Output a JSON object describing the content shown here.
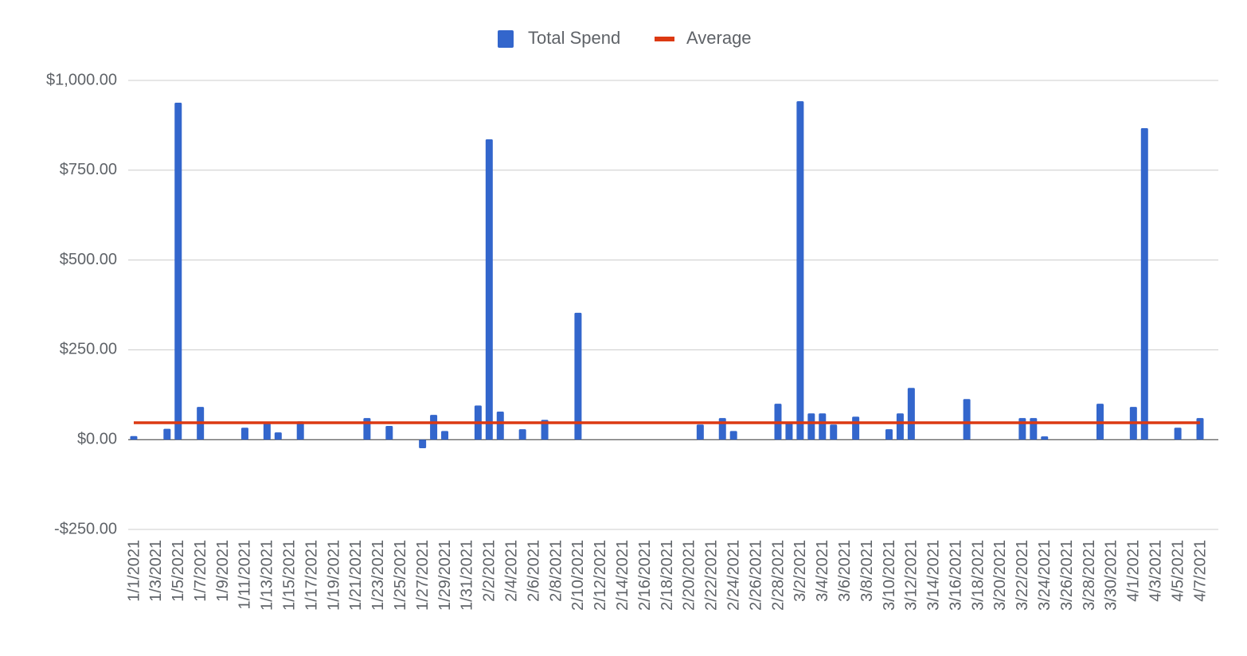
{
  "chart_data": {
    "type": "bar",
    "categories": [
      "1/1/2021",
      null,
      "1/3/2021",
      null,
      "1/5/2021",
      null,
      "1/7/2021",
      null,
      "1/9/2021",
      null,
      "1/11/2021",
      null,
      "1/13/2021",
      null,
      "1/15/2021",
      null,
      "1/17/2021",
      null,
      "1/19/2021",
      null,
      "1/21/2021",
      null,
      "1/23/2021",
      null,
      "1/25/2021",
      null,
      "1/27/2021",
      null,
      "1/29/2021",
      null,
      "1/31/2021",
      null,
      "2/2/2021",
      null,
      "2/4/2021",
      null,
      "2/6/2021",
      null,
      "2/8/2021",
      null,
      "2/10/2021",
      null,
      "2/12/2021",
      null,
      "2/14/2021",
      null,
      "2/16/2021",
      null,
      "2/18/2021",
      null,
      "2/20/2021",
      null,
      "2/22/2021",
      null,
      "2/24/2021",
      null,
      "2/26/2021",
      null,
      "2/28/2021",
      null,
      "3/2/2021",
      null,
      "3/4/2021",
      null,
      "3/6/2021",
      null,
      "3/8/2021",
      null,
      "3/10/2021",
      null,
      "3/12/2021",
      null,
      "3/14/2021",
      null,
      "3/16/2021",
      null,
      "3/18/2021",
      null,
      "3/20/2021",
      null,
      "3/22/2021",
      null,
      "3/24/2021",
      null,
      "3/26/2021",
      null,
      "3/28/2021",
      null,
      "3/30/2021",
      null,
      "4/1/2021",
      null,
      "4/3/2021",
      null,
      "4/5/2021",
      null,
      "4/7/2021"
    ],
    "series": [
      {
        "name": "Total Spend",
        "color": "#3366cc",
        "type": "bar",
        "values": [
          10,
          null,
          null,
          30,
          938,
          null,
          91,
          null,
          null,
          null,
          33,
          null,
          45,
          20,
          null,
          51,
          null,
          null,
          null,
          null,
          null,
          60,
          null,
          38,
          null,
          null,
          -24,
          69,
          24,
          null,
          null,
          95,
          836,
          78,
          null,
          29,
          null,
          55,
          null,
          null,
          353,
          null,
          null,
          null,
          null,
          null,
          null,
          null,
          null,
          null,
          null,
          42,
          null,
          60,
          24,
          null,
          null,
          null,
          100,
          47,
          942,
          73,
          73,
          42,
          null,
          64,
          null,
          null,
          29,
          73,
          144,
          null,
          null,
          null,
          null,
          113,
          null,
          null,
          null,
          null,
          60,
          60,
          9,
          null,
          null,
          null,
          null,
          100,
          null,
          null,
          91,
          867,
          null,
          null,
          33,
          null,
          60
        ]
      },
      {
        "name": "Average",
        "color": "#dc3912",
        "type": "line",
        "values": [
          47,
          47,
          47,
          47,
          47,
          47,
          47,
          47,
          47,
          47,
          47,
          47,
          47,
          47,
          47,
          47,
          47,
          47,
          47,
          47,
          47,
          47,
          47,
          47,
          47,
          47,
          47,
          47,
          47,
          47,
          47,
          47,
          47,
          47,
          47,
          47,
          47,
          47,
          47,
          47,
          47,
          47,
          47,
          47,
          47,
          47,
          47,
          47,
          47,
          47,
          47,
          47,
          47,
          47,
          47,
          47,
          47,
          47,
          47,
          47,
          47,
          47,
          47,
          47,
          47,
          47,
          47,
          47,
          47,
          47,
          47,
          47,
          47,
          47,
          47,
          47,
          47,
          47,
          47,
          47,
          47,
          47,
          47,
          47,
          47,
          47,
          47,
          47,
          47,
          47,
          47,
          47,
          47,
          47,
          47,
          47,
          47
        ]
      }
    ],
    "ylim": [
      -250,
      1000
    ],
    "yticks": [
      {
        "value": -250,
        "label": "-$250.00"
      },
      {
        "value": 0,
        "label": "$0.00"
      },
      {
        "value": 250,
        "label": "$250.00"
      },
      {
        "value": 500,
        "label": "$500.00"
      },
      {
        "value": 750,
        "label": "$750.00"
      },
      {
        "value": 1000,
        "label": "$1,000.00"
      }
    ],
    "grid": true,
    "legend": "top"
  }
}
